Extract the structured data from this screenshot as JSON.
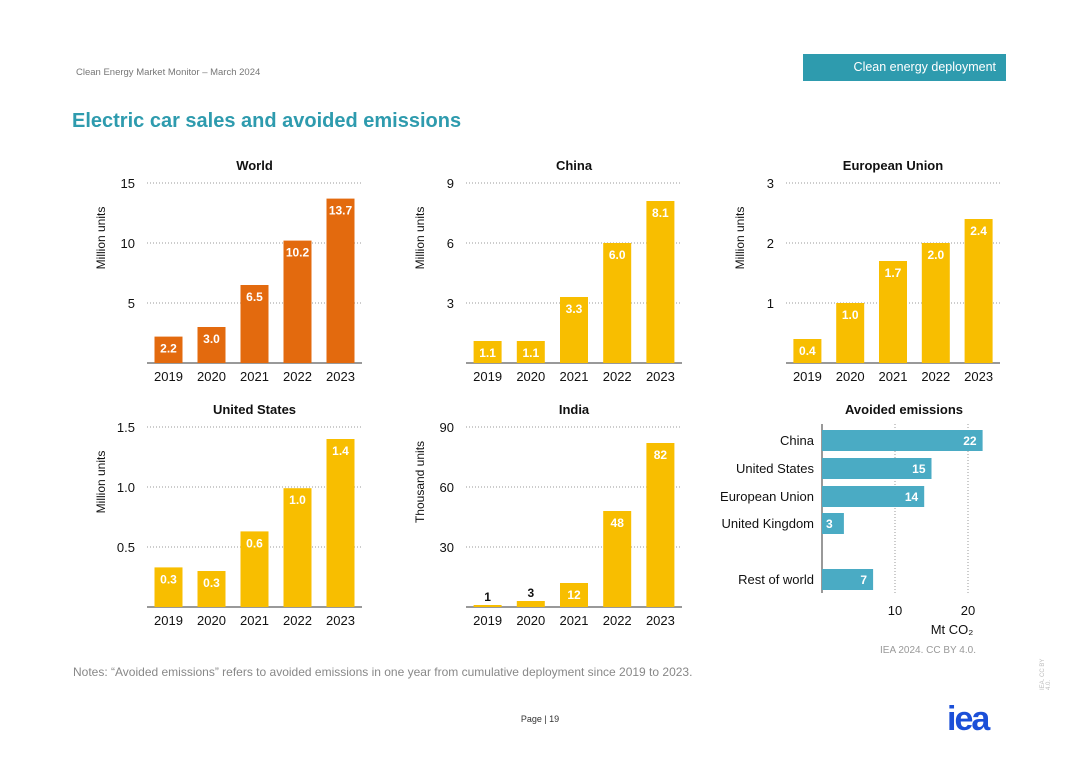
{
  "header": {
    "report": "Clean Energy Market Monitor – March 2024",
    "section_tag": "Clean energy deployment"
  },
  "title": "Electric car sales and avoided emissions",
  "notes": "Notes: “Avoided emissions” refers to avoided emissions in one year from cumulative deployment since 2019 to 2023.",
  "source": "IEA 2024. CC BY 4.0.",
  "page": "Page | 19",
  "logo": "iea",
  "side_text": "IEA. CC BY 4.0.",
  "colors": {
    "orange": "#E36A0E",
    "yellow": "#F8BE00",
    "teal": "#4AABC4",
    "accent": "#2E9BAE"
  },
  "chart_data": [
    {
      "type": "bar",
      "title": "World",
      "ylabel": "Million units",
      "categories": [
        "2019",
        "2020",
        "2021",
        "2022",
        "2023"
      ],
      "values": [
        2.2,
        3.0,
        6.5,
        10.2,
        13.7
      ],
      "labels": [
        "2.2",
        "3.0",
        "6.5",
        "10.2",
        "13.7"
      ],
      "yticks": [
        5,
        10,
        15
      ],
      "ylim": [
        0,
        15
      ],
      "color": "orange",
      "grid": true
    },
    {
      "type": "bar",
      "title": "China",
      "ylabel": "Million units",
      "categories": [
        "2019",
        "2020",
        "2021",
        "2022",
        "2023"
      ],
      "values": [
        1.1,
        1.1,
        3.3,
        6.0,
        8.1
      ],
      "labels": [
        "1.1",
        "1.1",
        "3.3",
        "6.0",
        "8.1"
      ],
      "yticks": [
        3,
        6,
        9
      ],
      "ylim": [
        0,
        9
      ],
      "color": "yellow",
      "grid": true
    },
    {
      "type": "bar",
      "title": "European Union",
      "ylabel": "Million units",
      "categories": [
        "2019",
        "2020",
        "2021",
        "2022",
        "2023"
      ],
      "values": [
        0.4,
        1.0,
        1.7,
        2.0,
        2.4
      ],
      "labels": [
        "0.4",
        "1.0",
        "1.7",
        "2.0",
        "2.4"
      ],
      "yticks": [
        1,
        2,
        3
      ],
      "ylim": [
        0,
        3
      ],
      "color": "yellow",
      "grid": true
    },
    {
      "type": "bar",
      "title": "United States",
      "ylabel": "Million units",
      "categories": [
        "2019",
        "2020",
        "2021",
        "2022",
        "2023"
      ],
      "values": [
        0.33,
        0.3,
        0.63,
        0.99,
        1.4
      ],
      "labels": [
        "0.3",
        "0.3",
        "0.6",
        "1.0",
        "1.4"
      ],
      "yticks": [
        "0.5",
        "1.0",
        "1.5"
      ],
      "ylim": [
        0,
        1.5
      ],
      "color": "yellow",
      "grid": true
    },
    {
      "type": "bar",
      "title": "India",
      "ylabel": "Thousand units",
      "categories": [
        "2019",
        "2020",
        "2021",
        "2022",
        "2023"
      ],
      "values": [
        1,
        3,
        12,
        48,
        82
      ],
      "labels": [
        "1",
        "3",
        "12",
        "48",
        "82"
      ],
      "yticks": [
        30,
        60,
        90
      ],
      "ylim": [
        0,
        90
      ],
      "color": "yellow",
      "grid": true
    },
    {
      "type": "bar",
      "orientation": "horizontal",
      "title": "Avoided emissions",
      "xlabel": "Mt CO₂",
      "categories": [
        "China",
        "United States",
        "European Union",
        "United Kingdom",
        "Rest of world"
      ],
      "values": [
        22,
        15,
        14,
        3,
        7
      ],
      "labels": [
        "22",
        "15",
        "14",
        "3",
        "7"
      ],
      "xticks": [
        10,
        20
      ],
      "color": "teal",
      "grid": true
    }
  ]
}
